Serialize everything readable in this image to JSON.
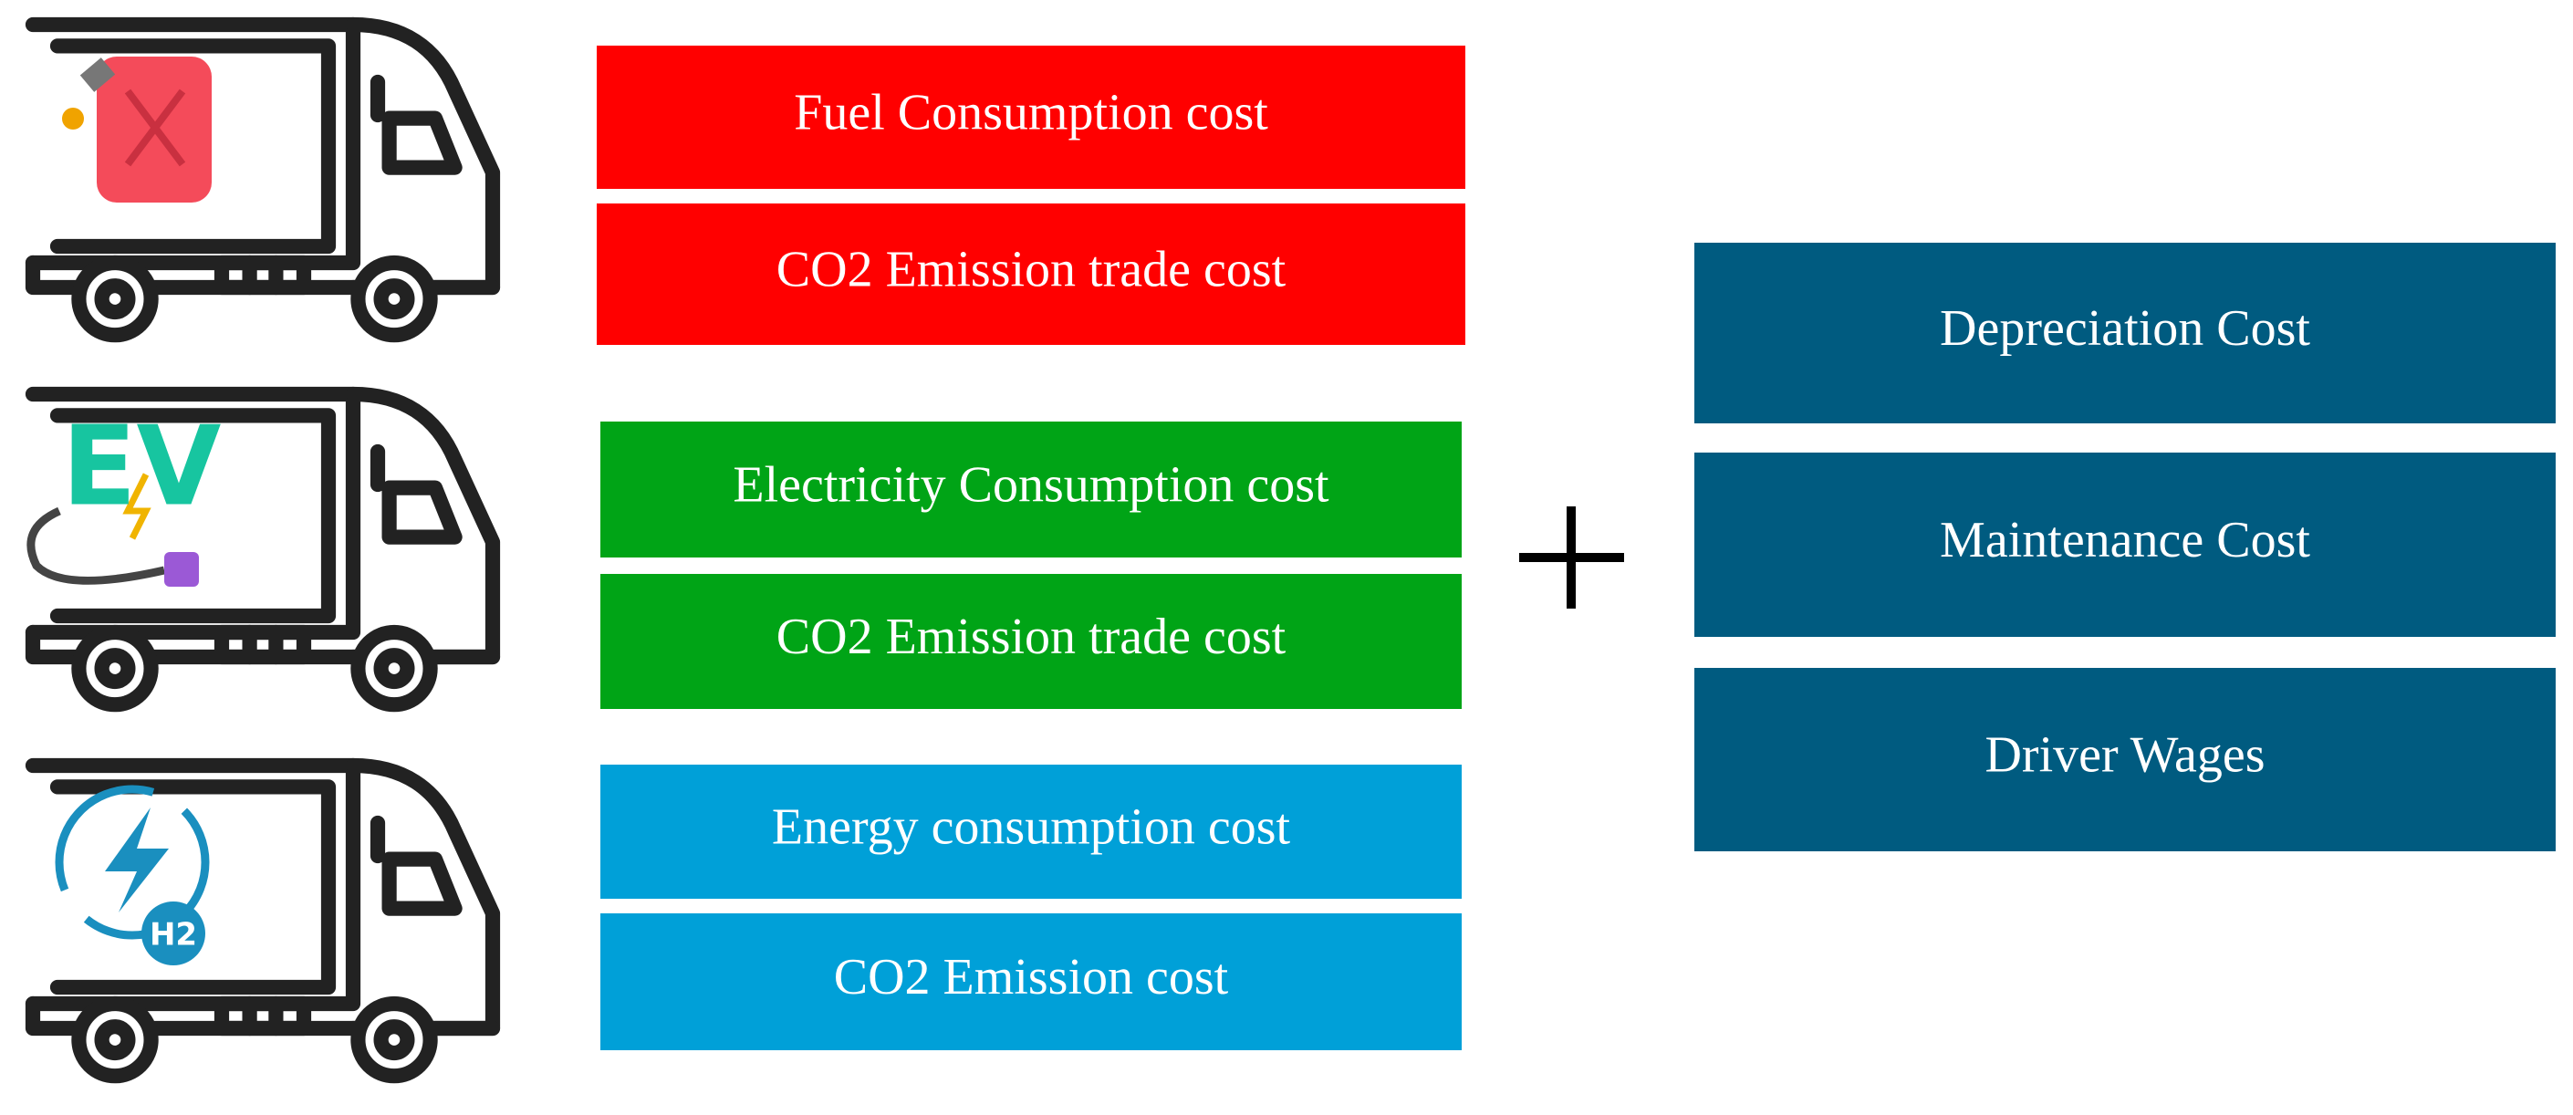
{
  "vehicles": [
    {
      "icon_label": null,
      "costs": [
        "Fuel Consumption cost",
        "CO2 Emission trade cost"
      ],
      "color": "#ff0000"
    },
    {
      "icon_label": "EV",
      "costs": [
        "Electricity Consumption cost",
        "CO2 Emission trade cost"
      ],
      "color": "#00a416"
    },
    {
      "icon_label": "H2",
      "costs": [
        "Energy consumption cost",
        "CO2 Emission cost"
      ],
      "color": "#00a0d8"
    }
  ],
  "common_costs": {
    "color": "#005b80",
    "items": [
      "Depreciation Cost",
      "Maintenance Cost",
      "Driver Wages"
    ]
  }
}
